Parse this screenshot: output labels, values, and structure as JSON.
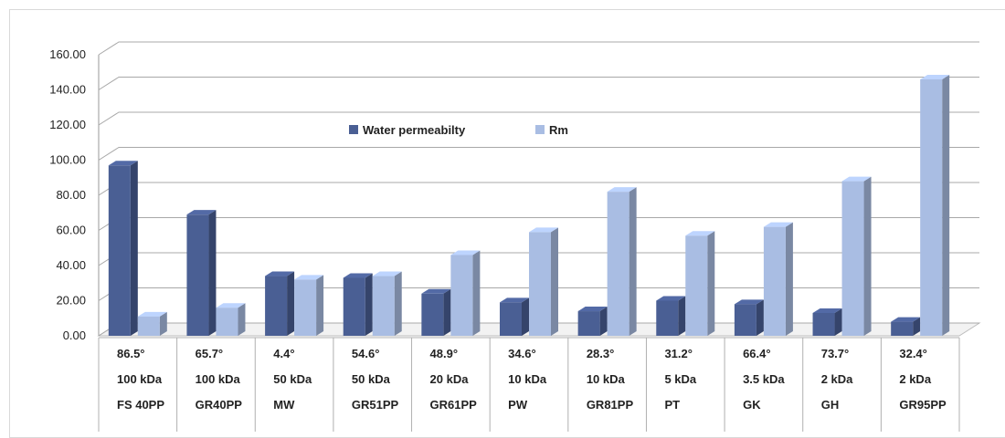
{
  "chart_data": {
    "type": "bar",
    "bar_style": "3d-clustered-column",
    "categories": [
      [
        "86.5°",
        "100 kDa",
        "FS 40PP"
      ],
      [
        "65.7°",
        "100 kDa",
        "GR40PP"
      ],
      [
        "4.4°",
        "50 kDa",
        "MW"
      ],
      [
        "54.6°",
        "50 kDa",
        "GR51PP"
      ],
      [
        "48.9°",
        "20 kDa",
        "GR61PP"
      ],
      [
        "34.6°",
        "10 kDa",
        "PW"
      ],
      [
        "28.3°",
        "10 kDa",
        "GR81PP"
      ],
      [
        "31.2°",
        "5 kDa",
        "PT"
      ],
      [
        "66.4°",
        "3.5 kDa",
        "GK"
      ],
      [
        "73.7°",
        "2 kDa",
        "GH"
      ],
      [
        "32.4°",
        "2 kDa",
        "GR95PP"
      ]
    ],
    "series": [
      {
        "name": "Water permeabilty",
        "color": "#4a5f94",
        "values": [
          97,
          69,
          34,
          33,
          24,
          19,
          14,
          20,
          18,
          13,
          8
        ]
      },
      {
        "name": "Rm",
        "color": "#a9bde3",
        "values": [
          11,
          16,
          32,
          34,
          46,
          59,
          82,
          57,
          62,
          88,
          146
        ]
      }
    ],
    "y_ticks": [
      "0.00",
      "20.00",
      "40.00",
      "60.00",
      "80.00",
      "100.00",
      "120.00",
      "140.00",
      "160.00"
    ],
    "ylim": [
      0,
      160
    ],
    "grid": true,
    "legend_position": "top-center",
    "title": "",
    "xlabel": "",
    "ylabel": ""
  }
}
